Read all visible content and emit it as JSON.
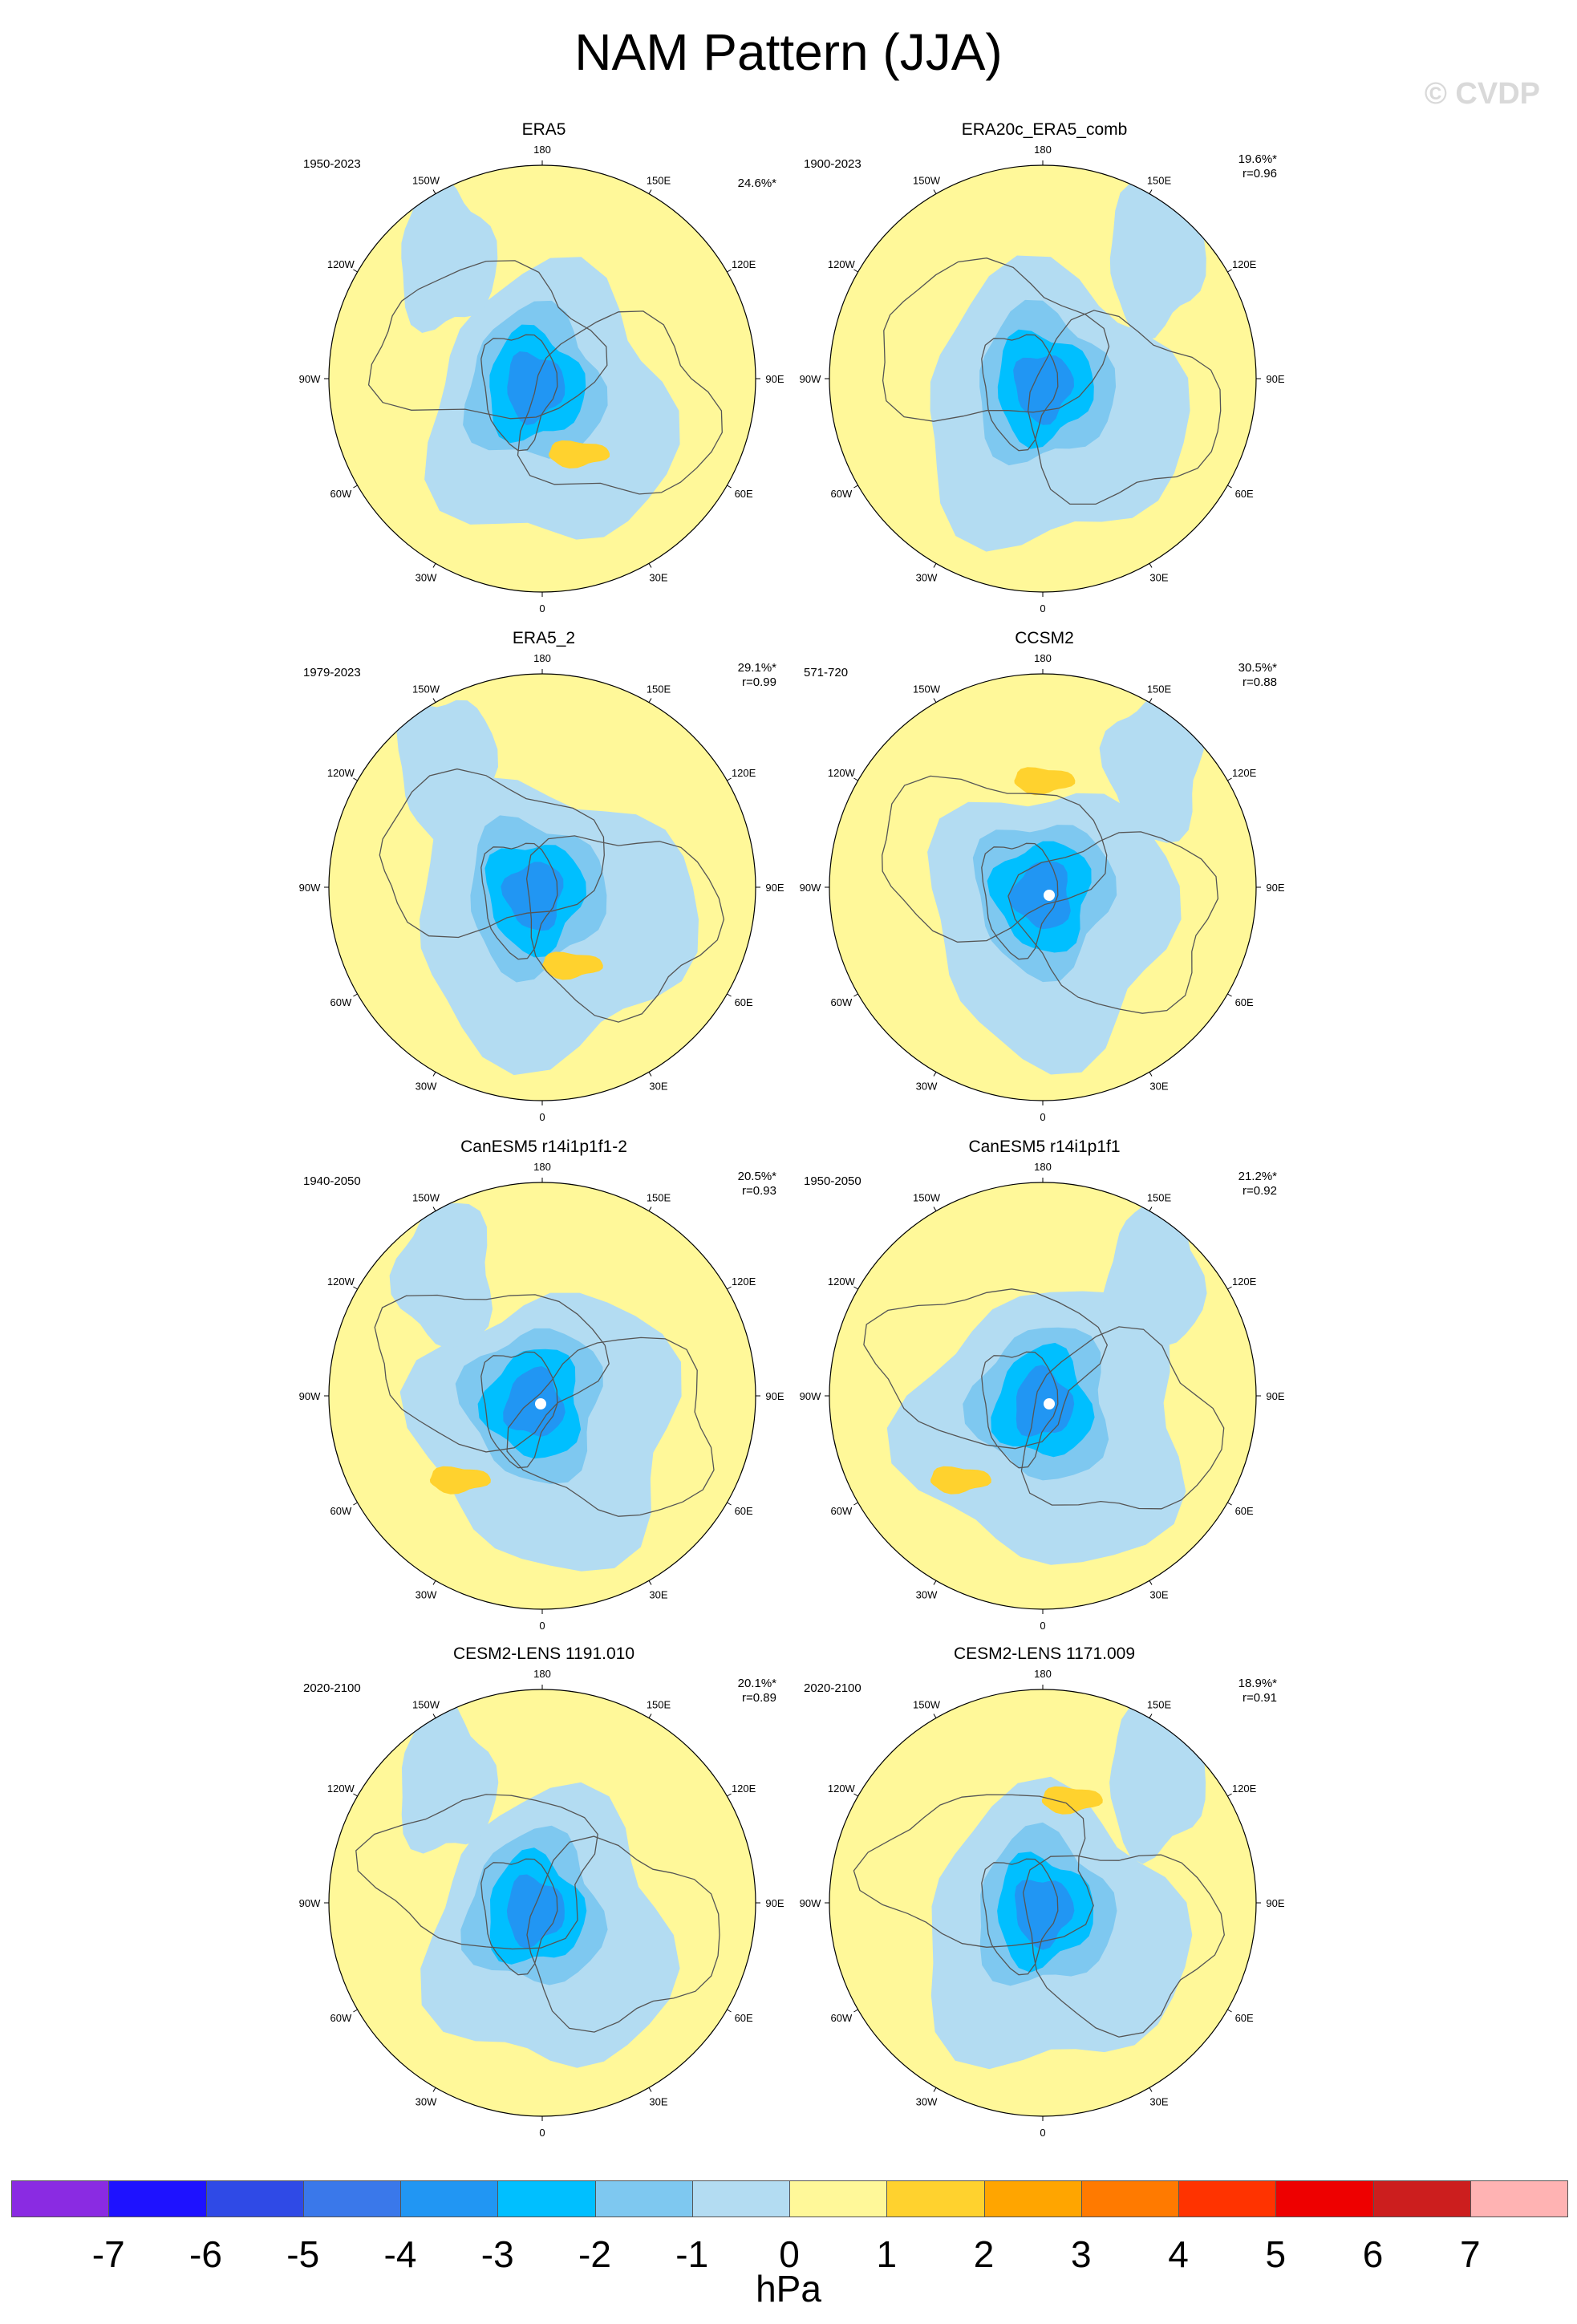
{
  "title": "NAM Pattern (JJA)",
  "watermark": "© CVDP",
  "lon_labels": {
    "top": "180",
    "bottom": "0",
    "left": "90W",
    "right": "90E",
    "upper_left": "150W",
    "upper_right": "150E",
    "mid_upper_left": "120W",
    "mid_upper_right": "120E",
    "mid_lower_left": "60W",
    "mid_lower_right": "60E",
    "lower_left": "30W",
    "lower_right": "30E"
  },
  "panels": [
    {
      "title": "ERA5",
      "period": "1950-2023",
      "variance": "24.6%*",
      "r": "",
      "center_dot": false,
      "warm_blobs": [
        {
          "lon": 25,
          "lat": 55,
          "min": 1
        }
      ]
    },
    {
      "title": "ERA20c_ERA5_comb",
      "period": "1900-2023",
      "variance": "19.6%*",
      "r": "r=0.96",
      "center_dot": false,
      "warm_blobs": []
    },
    {
      "title": "ERA5_2",
      "period": "1979-2023",
      "variance": "29.1%*",
      "r": "r=0.99",
      "center_dot": false,
      "warm_blobs": [
        {
          "lon": 20,
          "lat": 55,
          "min": 1
        }
      ]
    },
    {
      "title": "CCSM2",
      "period": "571-720",
      "variance": "30.5%*",
      "r": "r=0.88",
      "center_dot": true,
      "warm_blobs": [
        {
          "lon": 180,
          "lat": 45,
          "min": 1
        }
      ]
    },
    {
      "title": "CanESM5 r14i1p1f1-2",
      "period": "1940-2050",
      "variance": "20.5%*",
      "r": "r=0.93",
      "center_dot": true,
      "warm_blobs": [
        {
          "lon": -45,
          "lat": 40,
          "min": 1
        }
      ]
    },
    {
      "title": "CanESM5 r14i1p1f1",
      "period": "1950-2050",
      "variance": "21.2%*",
      "r": "r=0.92",
      "center_dot": true,
      "warm_blobs": [
        {
          "lon": -45,
          "lat": 40,
          "min": 1
        }
      ]
    },
    {
      "title": "CESM2-LENS 1191.010",
      "period": "2020-2100",
      "variance": "20.1%*",
      "r": "r=0.89",
      "center_dot": false,
      "warm_blobs": []
    },
    {
      "title": "CESM2-LENS 1171.009",
      "period": "2020-2100",
      "variance": "18.9%*",
      "r": "r=0.91",
      "center_dot": false,
      "warm_blobs": [
        {
          "lon": 165,
          "lat": 45,
          "min": 1
        }
      ]
    }
  ],
  "colorbar": {
    "units": "hPa",
    "ticks": [
      "-7",
      "-6",
      "-5",
      "-4",
      "-3",
      "-2",
      "-1",
      "0",
      "1",
      "2",
      "3",
      "4",
      "5",
      "6",
      "7"
    ],
    "colors": [
      "#8a2be2",
      "#1e12ff",
      "#2f4ae6",
      "#3a78ea",
      "#2196f3",
      "#00bfff",
      "#7ec8f0",
      "#b3dcf2",
      "#fff899",
      "#ffd22e",
      "#ffa500",
      "#ff7a00",
      "#ff3300",
      "#ee0000",
      "#cc1e1e",
      "#ffb3b3"
    ]
  }
}
